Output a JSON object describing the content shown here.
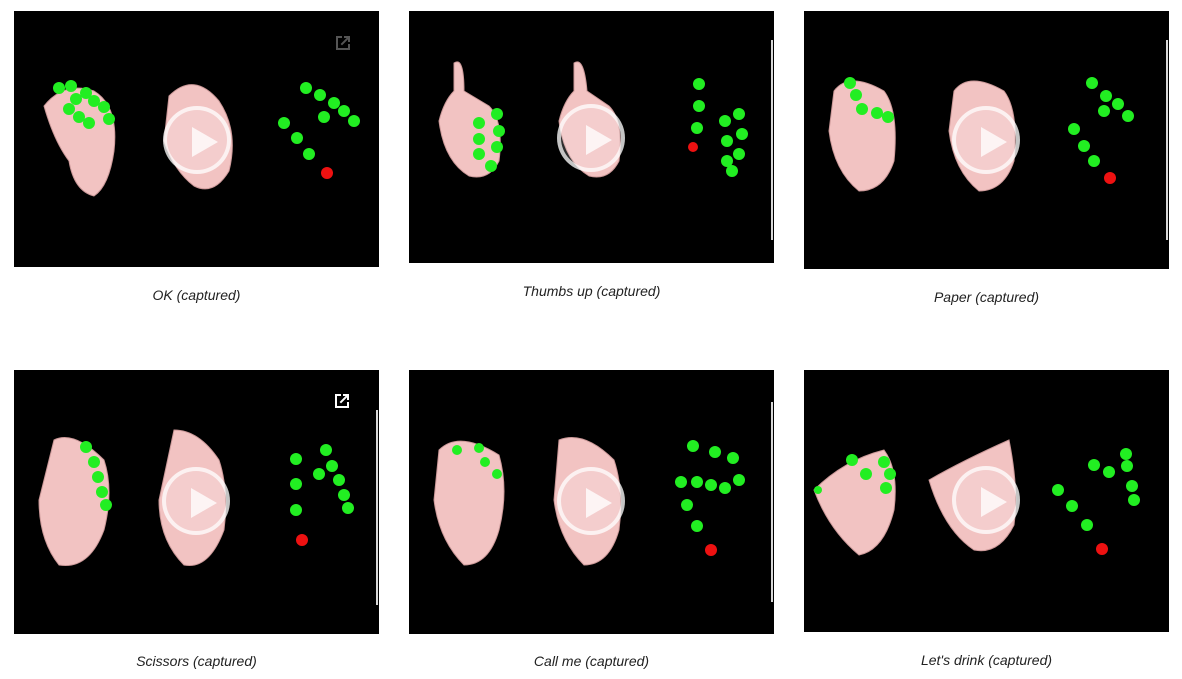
{
  "gallery": {
    "items": [
      {
        "id": "ok",
        "caption": "OK (captured)",
        "open_icon": "external-link-icon",
        "open_icon_style": "dim"
      },
      {
        "id": "thumbs-up",
        "caption": "Thumbs up (captured)"
      },
      {
        "id": "paper",
        "caption": "Paper (captured)"
      },
      {
        "id": "scissors",
        "caption": "Scissors (captured)",
        "open_icon": "external-link-icon",
        "open_icon_style": "bright"
      },
      {
        "id": "call-me",
        "caption": "Call me (captured)"
      },
      {
        "id": "lets-drink",
        "caption": "Let's drink (captured)"
      }
    ],
    "play_icon": "play-icon",
    "colors": {
      "video_bg": "#000000",
      "hand_skin": "#f2c3c2",
      "keypoint": "#22ee22",
      "wrist_keypoint": "#ee1111",
      "caption_text": "#222222"
    }
  }
}
